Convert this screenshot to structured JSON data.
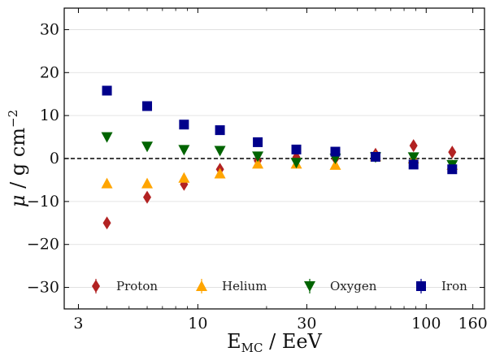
{
  "chart_data": {
    "type": "scatter",
    "title": "",
    "xlabel": "E_MC / EeV",
    "xlabel_main": "E",
    "xlabel_sub": "MC",
    "xlabel_rest": " / EeV",
    "ylabel": "μ / g cm^-2",
    "ylabel_mu": "μ",
    "ylabel_rest": " / g cm",
    "ylabel_exp": "−2",
    "xscale": "log",
    "xlim": [
      2.6,
      180
    ],
    "ylim": [
      -35,
      35
    ],
    "xticks": [
      3,
      10,
      30,
      100,
      160
    ],
    "xtick_labels": [
      "3",
      "10",
      "30",
      "100",
      "160"
    ],
    "yticks": [
      -30,
      -20,
      -10,
      0,
      10,
      20,
      30
    ],
    "ytick_labels": [
      "−30",
      "−20",
      "−10",
      "0",
      "10",
      "20",
      "30"
    ],
    "grid": true,
    "reference_line": 0,
    "legend_position": "bottom",
    "series": [
      {
        "name": "Proton",
        "marker": "diamond",
        "color": "#b22222",
        "x": [
          4.0,
          6.0,
          8.7,
          12.5,
          18.3,
          27.0,
          40.0,
          60.0,
          88.0,
          130.0
        ],
        "y": [
          -15.0,
          -9.0,
          -6.0,
          -2.5,
          -0.5,
          0.3,
          0.0,
          1.0,
          3.0,
          1.5
        ]
      },
      {
        "name": "Helium",
        "marker": "triangle-up",
        "color": "#ffa500",
        "x": [
          4.0,
          6.0,
          8.7,
          12.5,
          18.3,
          27.0,
          40.0,
          60.0,
          88.0,
          130.0
        ],
        "y": [
          -5.8,
          -5.8,
          -4.5,
          -3.5,
          -1.2,
          -1.2,
          -1.5,
          0.5,
          0.0,
          -1.5
        ]
      },
      {
        "name": "Oxygen",
        "marker": "triangle-down",
        "color": "#006400",
        "x": [
          4.0,
          6.0,
          8.7,
          12.5,
          18.3,
          27.0,
          40.0,
          60.0,
          88.0,
          130.0
        ],
        "y": [
          5.0,
          2.8,
          2.0,
          1.8,
          0.5,
          -1.0,
          0.0,
          0.3,
          0.3,
          -1.5
        ]
      },
      {
        "name": "Iron",
        "marker": "square",
        "color": "#00008b",
        "x": [
          4.0,
          6.0,
          8.7,
          12.5,
          18.3,
          27.0,
          40.0,
          60.0,
          88.0,
          130.0
        ],
        "y": [
          15.8,
          12.2,
          7.9,
          6.6,
          3.8,
          2.1,
          1.6,
          0.4,
          -1.4,
          -2.5
        ]
      }
    ]
  }
}
